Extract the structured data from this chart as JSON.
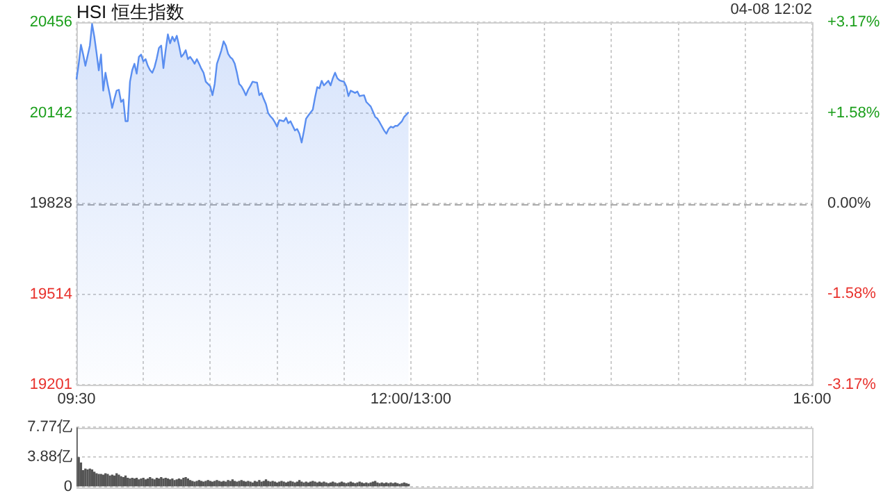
{
  "chart_data": [
    {
      "type": "area",
      "title": "HSI 恒生指数",
      "annotations": [
        "04-08 12:02"
      ],
      "categories": [
        "09:30",
        null,
        null,
        null,
        null,
        null,
        null,
        null,
        null,
        null,
        null,
        null,
        null,
        null,
        null,
        null,
        null,
        null,
        null,
        null,
        null,
        null,
        null,
        null,
        null,
        null,
        null,
        null,
        null,
        null,
        null,
        null,
        null,
        null,
        null,
        null,
        null,
        null,
        null,
        null,
        null,
        null,
        null,
        null,
        null,
        null,
        null,
        null,
        null,
        null,
        null,
        null,
        null,
        null,
        null,
        null,
        null,
        null,
        null,
        null,
        null,
        null,
        null,
        null,
        null,
        null,
        null,
        null,
        null,
        null,
        null,
        null,
        null,
        null,
        null,
        null,
        null,
        null,
        null,
        null,
        null,
        null,
        null,
        null,
        null,
        null,
        null,
        null,
        null,
        null,
        null,
        null,
        null,
        null,
        null,
        null,
        null,
        null,
        null,
        null,
        null,
        null,
        null,
        null,
        null,
        null,
        null,
        null,
        null,
        null,
        null,
        null,
        null,
        null,
        null,
        null,
        null,
        null,
        null,
        null,
        null,
        null,
        null,
        null,
        null,
        null,
        null,
        null,
        null,
        null,
        null,
        null,
        null,
        null,
        null,
        null,
        null,
        null,
        null,
        null,
        null,
        null,
        null,
        null,
        null,
        null,
        null,
        null,
        null,
        null,
        "12:00/13:00",
        null,
        null,
        null,
        null,
        null,
        null,
        null,
        null,
        null,
        null,
        null,
        null,
        null,
        null,
        null,
        null,
        null,
        null,
        null,
        null,
        null,
        null,
        null,
        null,
        null,
        null,
        null,
        null,
        null,
        null,
        null,
        null,
        null,
        null,
        null,
        null,
        null,
        null,
        null,
        null,
        null,
        null,
        null,
        null,
        null,
        null,
        null,
        null,
        null,
        null,
        null,
        null,
        null,
        null,
        null,
        null,
        null,
        null,
        null,
        null,
        null,
        null,
        null,
        null,
        null,
        null,
        null,
        null,
        null,
        null,
        null,
        null,
        null,
        null,
        null,
        null,
        null,
        null,
        null,
        null,
        null,
        null,
        null,
        null,
        null,
        null,
        null,
        null,
        null,
        null,
        null,
        null,
        null,
        null,
        null,
        null,
        null,
        null,
        null,
        null,
        null,
        null,
        null,
        null,
        null,
        null,
        null,
        null,
        null,
        null,
        null,
        null,
        null,
        null,
        null,
        null,
        null,
        null,
        null,
        null,
        null,
        null,
        null,
        null,
        null,
        null,
        null,
        null,
        null,
        null,
        null,
        null,
        null,
        null,
        null,
        null,
        null,
        null,
        null,
        null,
        null,
        null,
        null,
        null,
        null,
        null,
        null,
        null,
        null,
        null,
        null,
        null,
        null,
        null,
        null,
        null,
        null,
        null,
        null,
        null,
        null,
        null,
        null,
        null,
        null,
        null,
        null,
        null,
        null,
        null,
        null,
        null,
        null,
        null,
        null,
        null,
        null,
        null,
        null,
        "16:00"
      ],
      "series": [
        {
          "color": "#5a8ef0",
          "values": [
            20258,
            20312,
            20378,
            20344,
            20305,
            20340,
            20375,
            20450,
            20406,
            20350,
            20289,
            20344,
            20219,
            20281,
            20240,
            20203,
            20159,
            20190,
            20219,
            20222,
            20180,
            20188,
            20113,
            20113,
            20250,
            20290,
            20312,
            20278,
            20336,
            20344,
            20320,
            20328,
            20305,
            20290,
            20281,
            20300,
            20330,
            20367,
            20375,
            20297,
            20359,
            20414,
            20383,
            20406,
            20390,
            20409,
            20375,
            20336,
            20345,
            20359,
            20328,
            20336,
            20325,
            20312,
            20328,
            20312,
            20295,
            20281,
            20250,
            20242,
            20234,
            20203,
            20242,
            20312,
            20335,
            20359,
            20390,
            20375,
            20347,
            20335,
            20328,
            20312,
            20280,
            20242,
            20234,
            20220,
            20203,
            20222,
            20235,
            20250,
            20248,
            20247,
            20203,
            20211,
            20190,
            20172,
            20141,
            20130,
            20122,
            20109,
            20094,
            20117,
            20115,
            20113,
            20125,
            20106,
            20113,
            20097,
            20081,
            20086,
            20070,
            20039,
            20078,
            20122,
            20133,
            20143,
            20153,
            20195,
            20231,
            20227,
            20253,
            20237,
            20245,
            20253,
            20237,
            20262,
            20281,
            20262,
            20255,
            20252,
            20250,
            20234,
            20200,
            20219,
            20215,
            20211,
            20216,
            20200,
            20202,
            20203,
            20180,
            20172,
            20164,
            20146,
            20128,
            20122,
            20109,
            20095,
            20081,
            20070,
            20086,
            20094,
            20091,
            20097,
            20097,
            20105,
            20113,
            20128,
            20136,
            20144,
            null,
            null,
            null,
            null,
            null,
            null,
            null,
            null,
            null,
            null,
            null,
            null,
            null,
            null,
            null,
            null,
            null,
            null,
            null,
            null,
            null,
            null,
            null,
            null,
            null,
            null,
            null,
            null,
            null,
            null,
            null,
            null,
            null,
            null,
            null,
            null,
            null,
            null,
            null,
            null,
            null,
            null,
            null,
            null,
            null,
            null,
            null,
            null,
            null,
            null,
            null,
            null,
            null,
            null,
            null,
            null,
            null,
            null,
            null,
            null,
            null,
            null,
            null,
            null,
            null,
            null,
            null,
            null,
            null,
            null,
            null,
            null,
            null,
            null,
            null,
            null,
            null,
            null,
            null,
            null,
            null,
            null,
            null,
            null,
            null,
            null,
            null,
            null,
            null,
            null,
            null,
            null,
            null,
            null,
            null,
            null,
            null,
            null,
            null,
            null,
            null,
            null,
            null,
            null,
            null,
            null,
            null,
            null,
            null,
            null,
            null,
            null,
            null,
            null,
            null,
            null,
            null,
            null,
            null,
            null,
            null,
            null,
            null,
            null,
            null,
            null,
            null,
            null,
            null,
            null,
            null,
            null,
            null,
            null,
            null,
            null,
            null,
            null,
            null,
            null,
            null,
            null,
            null,
            null,
            null,
            null,
            null,
            null,
            null,
            null,
            null,
            null,
            null,
            null,
            null,
            null,
            null,
            null,
            null,
            null,
            null,
            null,
            null,
            null,
            null,
            null,
            null,
            null,
            null,
            null,
            null,
            null,
            null,
            null,
            null,
            null,
            null,
            null,
            null,
            null,
            null
          ]
        }
      ],
      "ylim": [
        19201,
        20456
      ],
      "yticks": [
        19201,
        19514,
        19828,
        20142,
        20456
      ],
      "y2lim": [
        -3.17,
        3.17
      ],
      "y2ticks": [
        {
          "value": -3.17,
          "label": "-3.17%"
        },
        {
          "value": -1.58,
          "label": "-1.58%"
        },
        {
          "value": 0,
          "label": "0.00%"
        },
        {
          "value": 1.58,
          "label": "+1.58%"
        },
        {
          "value": 3.17,
          "label": "+3.17%"
        }
      ],
      "ref_lines": [
        {
          "axis": "y",
          "value": 19828,
          "line_style": "dashed"
        }
      ],
      "grid": true,
      "legend": false
    },
    {
      "type": "bar",
      "color": "#555555",
      "categories": [
        null,
        null,
        null,
        null,
        null,
        null,
        null,
        null,
        null,
        null,
        null,
        null,
        null,
        null,
        null,
        null,
        null,
        null,
        null,
        null,
        null,
        null,
        null,
        null,
        null,
        null,
        null,
        null,
        null,
        null,
        null,
        null,
        null,
        null,
        null,
        null,
        null,
        null,
        null,
        null,
        null,
        null,
        null,
        null,
        null,
        null,
        null,
        null,
        null,
        null,
        null,
        null,
        null,
        null,
        null,
        null,
        null,
        null,
        null,
        null,
        null,
        null,
        null,
        null,
        null,
        null,
        null,
        null,
        null,
        null,
        null,
        null,
        null,
        null,
        null,
        null,
        null,
        null,
        null,
        null,
        null,
        null,
        null,
        null,
        null,
        null,
        null,
        null,
        null,
        null,
        null,
        null,
        null,
        null,
        null,
        null,
        null,
        null,
        null,
        null,
        null,
        null,
        null,
        null,
        null,
        null,
        null,
        null,
        null,
        null,
        null,
        null,
        null,
        null,
        null,
        null,
        null,
        null,
        null,
        null,
        null,
        null,
        null,
        null,
        null,
        null,
        null,
        null,
        null,
        null,
        null,
        null,
        null,
        null,
        null,
        null,
        null,
        null,
        null,
        null,
        null,
        null,
        null,
        null,
        null,
        null,
        null,
        null,
        null,
        null,
        null,
        null,
        null,
        null,
        null,
        null,
        null,
        null,
        null,
        null,
        null,
        null,
        null,
        null,
        null,
        null,
        null,
        null,
        null,
        null,
        null,
        null,
        null,
        null,
        null,
        null,
        null,
        null,
        null,
        null,
        null,
        null,
        null,
        null,
        null,
        null,
        null,
        null,
        null,
        null,
        null,
        null,
        null,
        null,
        null,
        null,
        null,
        null,
        null,
        null,
        null,
        null,
        null,
        null,
        null,
        null,
        null,
        null,
        null,
        null,
        null,
        null,
        null,
        null,
        null,
        null,
        null,
        null,
        null,
        null,
        null,
        null,
        null,
        null,
        null,
        null,
        null,
        null,
        null,
        null,
        null,
        null,
        null,
        null,
        null,
        null,
        null,
        null,
        null,
        null,
        null,
        null,
        null,
        null,
        null,
        null,
        null,
        null,
        null,
        null,
        null,
        null,
        null,
        null,
        null,
        null,
        null,
        null,
        null,
        null,
        null,
        null,
        null,
        null,
        null,
        null,
        null,
        null,
        null,
        null,
        null,
        null,
        null,
        null,
        null,
        null,
        null,
        null,
        null,
        null,
        null,
        null,
        null,
        null,
        null,
        null,
        null,
        null,
        null,
        null,
        null,
        null,
        null,
        null,
        null,
        null,
        null,
        null,
        null,
        null,
        null,
        null,
        null,
        null,
        null,
        null,
        null,
        null,
        null,
        null,
        null,
        null,
        null,
        null,
        null,
        null,
        null,
        null,
        null,
        null,
        null,
        null,
        null,
        null,
        null,
        null,
        null,
        null,
        null,
        null,
        null
      ],
      "values": [
        7.7,
        3.8,
        3.1,
        2.1,
        2.3,
        2.2,
        2.3,
        2.2,
        1.9,
        1.7,
        1.6,
        1.6,
        1.5,
        1.7,
        1.6,
        1.4,
        1.5,
        1.4,
        1.7,
        1.5,
        1.3,
        1.2,
        1.4,
        1.1,
        1.0,
        1.1,
        1.0,
        1.1,
        0.9,
        1.0,
        1.1,
        0.9,
        1.0,
        1.2,
        1.0,
        0.9,
        1.1,
        1.0,
        1.2,
        1.0,
        1.1,
        1.0,
        0.9,
        1.0,
        0.8,
        0.9,
        1.0,
        0.9,
        1.1,
        1.2,
        1.0,
        0.8,
        0.7,
        0.6,
        0.7,
        0.8,
        0.7,
        0.6,
        0.7,
        0.8,
        0.7,
        0.6,
        0.7,
        0.8,
        0.7,
        0.6,
        0.7,
        0.6,
        0.8,
        0.7,
        0.9,
        0.7,
        0.6,
        0.7,
        0.8,
        0.7,
        0.6,
        0.7,
        0.6,
        0.5,
        0.7,
        0.6,
        0.8,
        0.6,
        0.7,
        0.9,
        0.7,
        0.6,
        0.7,
        0.6,
        0.5,
        0.6,
        0.7,
        0.6,
        0.5,
        0.6,
        0.7,
        0.6,
        0.5,
        0.6,
        0.8,
        0.6,
        0.5,
        0.6,
        0.5,
        0.6,
        0.7,
        0.6,
        0.5,
        0.6,
        0.5,
        0.6,
        0.5,
        0.4,
        0.5,
        0.6,
        0.5,
        0.4,
        0.5,
        0.6,
        0.5,
        0.4,
        0.5,
        0.6,
        0.5,
        0.4,
        0.5,
        0.6,
        0.5,
        0.4,
        0.5,
        0.4,
        0.5,
        0.6,
        0.7,
        0.5,
        0.4,
        0.5,
        0.4,
        0.5,
        0.4,
        0.5,
        0.4,
        0.5,
        0.4,
        0.3,
        0.4,
        0.5,
        0.4,
        0.3,
        null,
        null,
        null,
        null,
        null,
        null,
        null,
        null,
        null,
        null,
        null,
        null,
        null,
        null,
        null,
        null,
        null,
        null,
        null,
        null,
        null,
        null,
        null,
        null,
        null,
        null,
        null,
        null,
        null,
        null,
        null,
        null,
        null,
        null,
        null,
        null,
        null,
        null,
        null,
        null,
        null,
        null,
        null,
        null,
        null,
        null,
        null,
        null,
        null,
        null,
        null,
        null,
        null,
        null,
        null,
        null,
        null,
        null,
        null,
        null,
        null,
        null,
        null,
        null,
        null,
        null,
        null,
        null,
        null,
        null,
        null,
        null,
        null,
        null,
        null,
        null,
        null,
        null,
        null,
        null,
        null,
        null,
        null,
        null,
        null,
        null,
        null,
        null,
        null,
        null,
        null,
        null,
        null,
        null,
        null,
        null,
        null,
        null,
        null,
        null,
        null,
        null,
        null,
        null,
        null,
        null,
        null,
        null,
        null,
        null,
        null,
        null,
        null,
        null,
        null,
        null,
        null,
        null,
        null,
        null,
        null,
        null,
        null,
        null,
        null,
        null,
        null,
        null,
        null,
        null,
        null,
        null,
        null,
        null,
        null,
        null,
        null,
        null,
        null,
        null,
        null,
        null,
        null,
        null,
        null,
        null,
        null,
        null,
        null,
        null,
        null,
        null,
        null,
        null,
        null,
        null,
        null,
        null,
        null,
        null,
        null,
        null,
        null,
        null,
        null,
        null,
        null,
        null,
        null,
        null,
        null,
        null,
        null,
        null,
        null,
        null,
        null,
        null,
        null,
        null,
        null
      ],
      "ylim": [
        0,
        7.77
      ],
      "yticks": [
        0,
        {
          "value": 3.88,
          "label": "3.88亿"
        },
        {
          "value": 7.77,
          "label": "7.77亿"
        }
      ],
      "grid": "y",
      "tick_labels": "y",
      "legend": false
    }
  ]
}
